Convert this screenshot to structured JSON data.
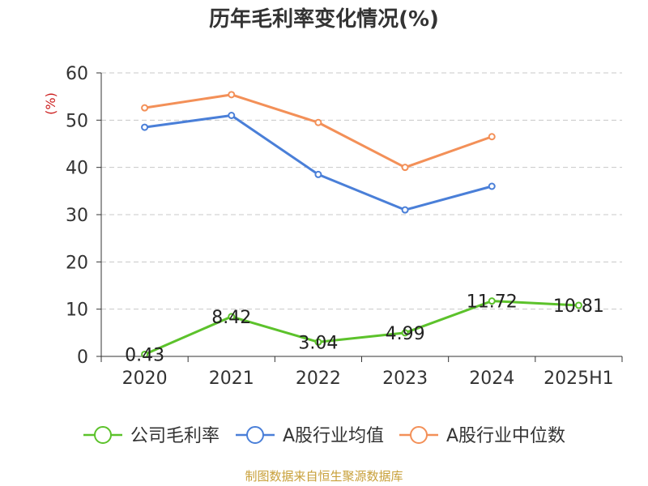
{
  "chart_data": {
    "type": "line",
    "title": "历年毛利率变化情况(%)",
    "ylabel": "(%)",
    "categories": [
      "2020",
      "2021",
      "2022",
      "2023",
      "2024",
      "2025H1"
    ],
    "ylim": [
      0,
      60
    ],
    "yticks": [
      0,
      10,
      20,
      30,
      40,
      50,
      60
    ],
    "grid": true,
    "legend_position": "bottom",
    "series": [
      {
        "name": "公司毛利率",
        "color": "#5cc22b",
        "values": [
          0.43,
          8.42,
          3.04,
          4.99,
          11.72,
          10.81
        ],
        "labels": [
          "0.43",
          "8.42",
          "3.04",
          "4.99",
          "11.72",
          "10.81"
        ]
      },
      {
        "name": "A股行业均值",
        "color": "#4a7fd8",
        "values": [
          48.5,
          51.0,
          38.5,
          31.0,
          36.0,
          null
        ]
      },
      {
        "name": "A股行业中位数",
        "color": "#f39058",
        "values": [
          52.6,
          55.4,
          49.5,
          40.0,
          46.5,
          null
        ]
      }
    ]
  },
  "source": "制图数据来自恒生聚源数据库"
}
